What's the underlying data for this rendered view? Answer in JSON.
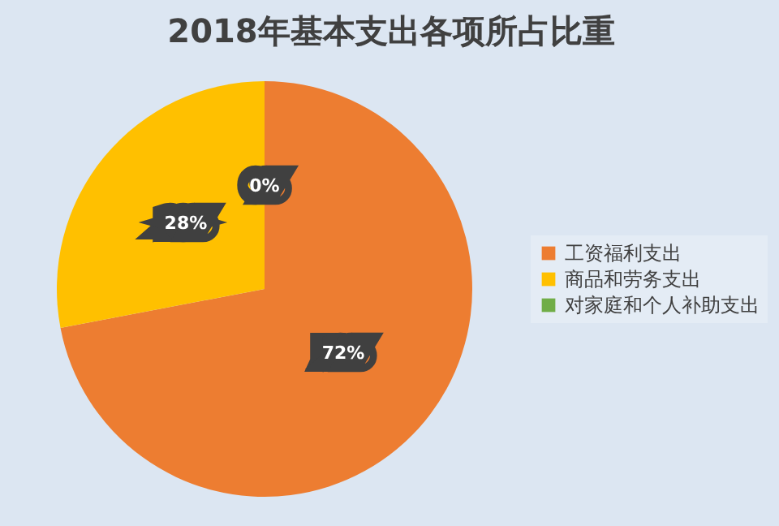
{
  "chart_data": {
    "type": "pie",
    "title": "2018年基本支出各项所占比重",
    "categories": [
      "工资福利支出",
      "商品和劳务支出",
      "对家庭和个人补助支出"
    ],
    "values": [
      72,
      28,
      0
    ],
    "colors": [
      "#ed7d31",
      "#ffc000",
      "#70ad47"
    ],
    "value_labels": [
      "72%",
      "28%",
      "0%"
    ],
    "legend": "right"
  }
}
